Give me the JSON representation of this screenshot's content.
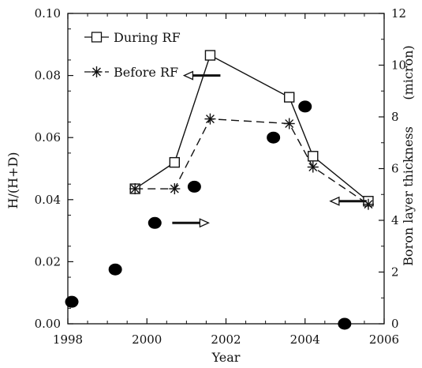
{
  "chart_data": {
    "type": "scatter",
    "xlabel": "Year",
    "ylabel_left": "H/(H+D)",
    "ylabel_right": "Boron layer thickness",
    "ylabel_right_unit": "(micron)",
    "xlim": [
      1998,
      2006
    ],
    "ylim_left": [
      0.0,
      0.1
    ],
    "ylim_right": [
      0,
      12
    ],
    "x_ticks": [
      "1998",
      "2000",
      "2002",
      "2004",
      "2006"
    ],
    "y_left_ticks": [
      "0.00",
      "0.02",
      "0.04",
      "0.06",
      "0.08",
      "0.10"
    ],
    "y_right_ticks": [
      "0",
      "2",
      "4",
      "6",
      "8",
      "10",
      "12"
    ],
    "legend_position": "top-left",
    "series": [
      {
        "name": "During RF",
        "axis": "left",
        "marker": "open-square",
        "line": "solid",
        "x": [
          1999.7,
          2000.7,
          2001.6,
          2003.6,
          2004.2,
          2005.6
        ],
        "y": [
          0.0435,
          0.052,
          0.0865,
          0.073,
          0.054,
          0.0395
        ]
      },
      {
        "name": "Before RF",
        "axis": "left",
        "marker": "asterisk",
        "line": "dashed",
        "x": [
          1999.7,
          2000.7,
          2001.6,
          2003.6,
          2004.2,
          2005.6
        ],
        "y": [
          0.0435,
          0.0435,
          0.066,
          0.0645,
          0.0505,
          0.0385
        ]
      },
      {
        "name": "",
        "axis": "right",
        "marker": "filled-circle",
        "line": "none",
        "x": [
          1998.1,
          1999.2,
          2000.2,
          2001.2,
          2003.2,
          2004.0,
          2005.0
        ],
        "y": [
          0.85,
          2.1,
          3.9,
          5.3,
          7.2,
          8.4,
          0.0
        ]
      }
    ],
    "arrows": [
      {
        "direction": "left",
        "points_to_axis": "left",
        "x": 2001.4,
        "y": 0.08
      },
      {
        "direction": "right",
        "points_to_axis": "right",
        "x": 2001.1,
        "y": 3.9
      },
      {
        "direction": "left",
        "points_to_axis": "left",
        "x": 2005.1,
        "y": 0.0395
      }
    ]
  }
}
